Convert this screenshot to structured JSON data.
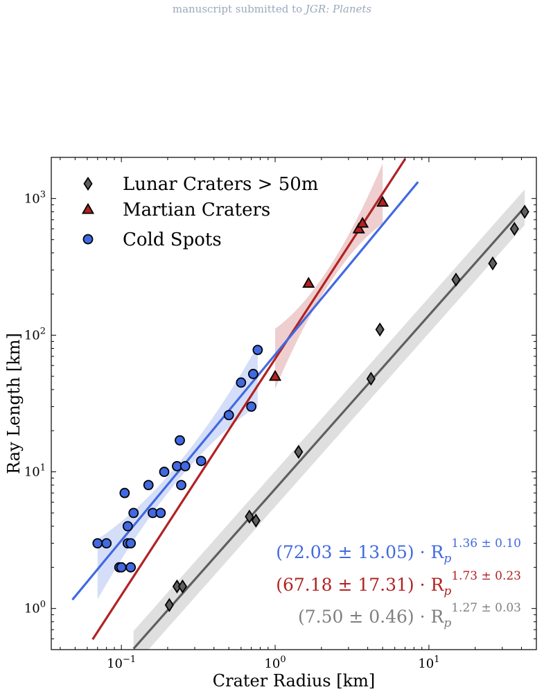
{
  "header": {
    "prefix": "manuscript submitted to",
    "journal": "JGR: Planets"
  },
  "chart_data": {
    "type": "scatter",
    "title": "",
    "xlabel": "Crater Radius [km]",
    "ylabel": "Ray Length [km]",
    "xscale": "log",
    "yscale": "log",
    "xlim": [
      0.035,
      50
    ],
    "ylim": [
      0.5,
      2000
    ],
    "xticks": [
      {
        "value": 0.1,
        "base": "10",
        "exp": "−1"
      },
      {
        "value": 1,
        "base": "10",
        "exp": "0"
      },
      {
        "value": 10,
        "base": "10",
        "exp": "1"
      }
    ],
    "yticks": [
      {
        "value": 1,
        "base": "10",
        "exp": "0"
      },
      {
        "value": 10,
        "base": "10",
        "exp": "1"
      },
      {
        "value": 100,
        "base": "10",
        "exp": "2"
      },
      {
        "value": 1000,
        "base": "10",
        "exp": "3"
      }
    ],
    "legend_position": "top-left",
    "series": [
      {
        "name": "Lunar Craters > 50m",
        "marker": "diamond",
        "color": "#5f5f5f",
        "points": [
          [
            0.205,
            1.06
          ],
          [
            0.23,
            1.45
          ],
          [
            0.25,
            1.45
          ],
          [
            0.68,
            4.7
          ],
          [
            0.75,
            4.4
          ],
          [
            1.42,
            14
          ],
          [
            4.2,
            48
          ],
          [
            4.8,
            110
          ],
          [
            15,
            255
          ],
          [
            26,
            335
          ],
          [
            36,
            600
          ],
          [
            42,
            800
          ]
        ],
        "fit": {
          "a": 7.5,
          "b": 1.27,
          "x_range": [
            0.12,
            42
          ],
          "band": 0.13
        },
        "equation": {
          "main": "(7.50 ± 0.46) · R",
          "sub": "p",
          "sup": "1.27 ± 0.03"
        }
      },
      {
        "name": "Martian Craters",
        "marker": "triangle",
        "color": "#b22222",
        "points": [
          [
            1.0,
            50
          ],
          [
            1.65,
            240
          ],
          [
            3.5,
            600
          ],
          [
            3.7,
            660
          ],
          [
            5.0,
            940
          ]
        ],
        "fit": {
          "a": 67.18,
          "b": 1.73,
          "x_range": [
            0.065,
            7
          ],
          "band_range": [
            1.0,
            5.0
          ]
        },
        "equation": {
          "main": "(67.18 ± 17.31) · R",
          "sub": "p",
          "sup": "1.73 ± 0.23"
        }
      },
      {
        "name": "Cold Spots",
        "marker": "circle",
        "color": "#4169e1",
        "points": [
          [
            0.07,
            3
          ],
          [
            0.08,
            3
          ],
          [
            0.097,
            2
          ],
          [
            0.1,
            2
          ],
          [
            0.105,
            7
          ],
          [
            0.11,
            4
          ],
          [
            0.11,
            3
          ],
          [
            0.115,
            3
          ],
          [
            0.115,
            2
          ],
          [
            0.12,
            5
          ],
          [
            0.15,
            8
          ],
          [
            0.16,
            5
          ],
          [
            0.18,
            5
          ],
          [
            0.19,
            10
          ],
          [
            0.23,
            11
          ],
          [
            0.24,
            17
          ],
          [
            0.245,
            8
          ],
          [
            0.26,
            11
          ],
          [
            0.33,
            12
          ],
          [
            0.5,
            26
          ],
          [
            0.6,
            45
          ],
          [
            0.7,
            30
          ],
          [
            0.72,
            52
          ],
          [
            0.77,
            78
          ]
        ],
        "fit": {
          "a": 72.03,
          "b": 1.36,
          "x_range": [
            0.048,
            8.5
          ],
          "band_range": [
            0.07,
            0.77
          ]
        },
        "equation": {
          "main": "(72.03 ± 13.05) · R",
          "sub": "p",
          "sup": "1.36 ± 0.10"
        }
      }
    ]
  }
}
